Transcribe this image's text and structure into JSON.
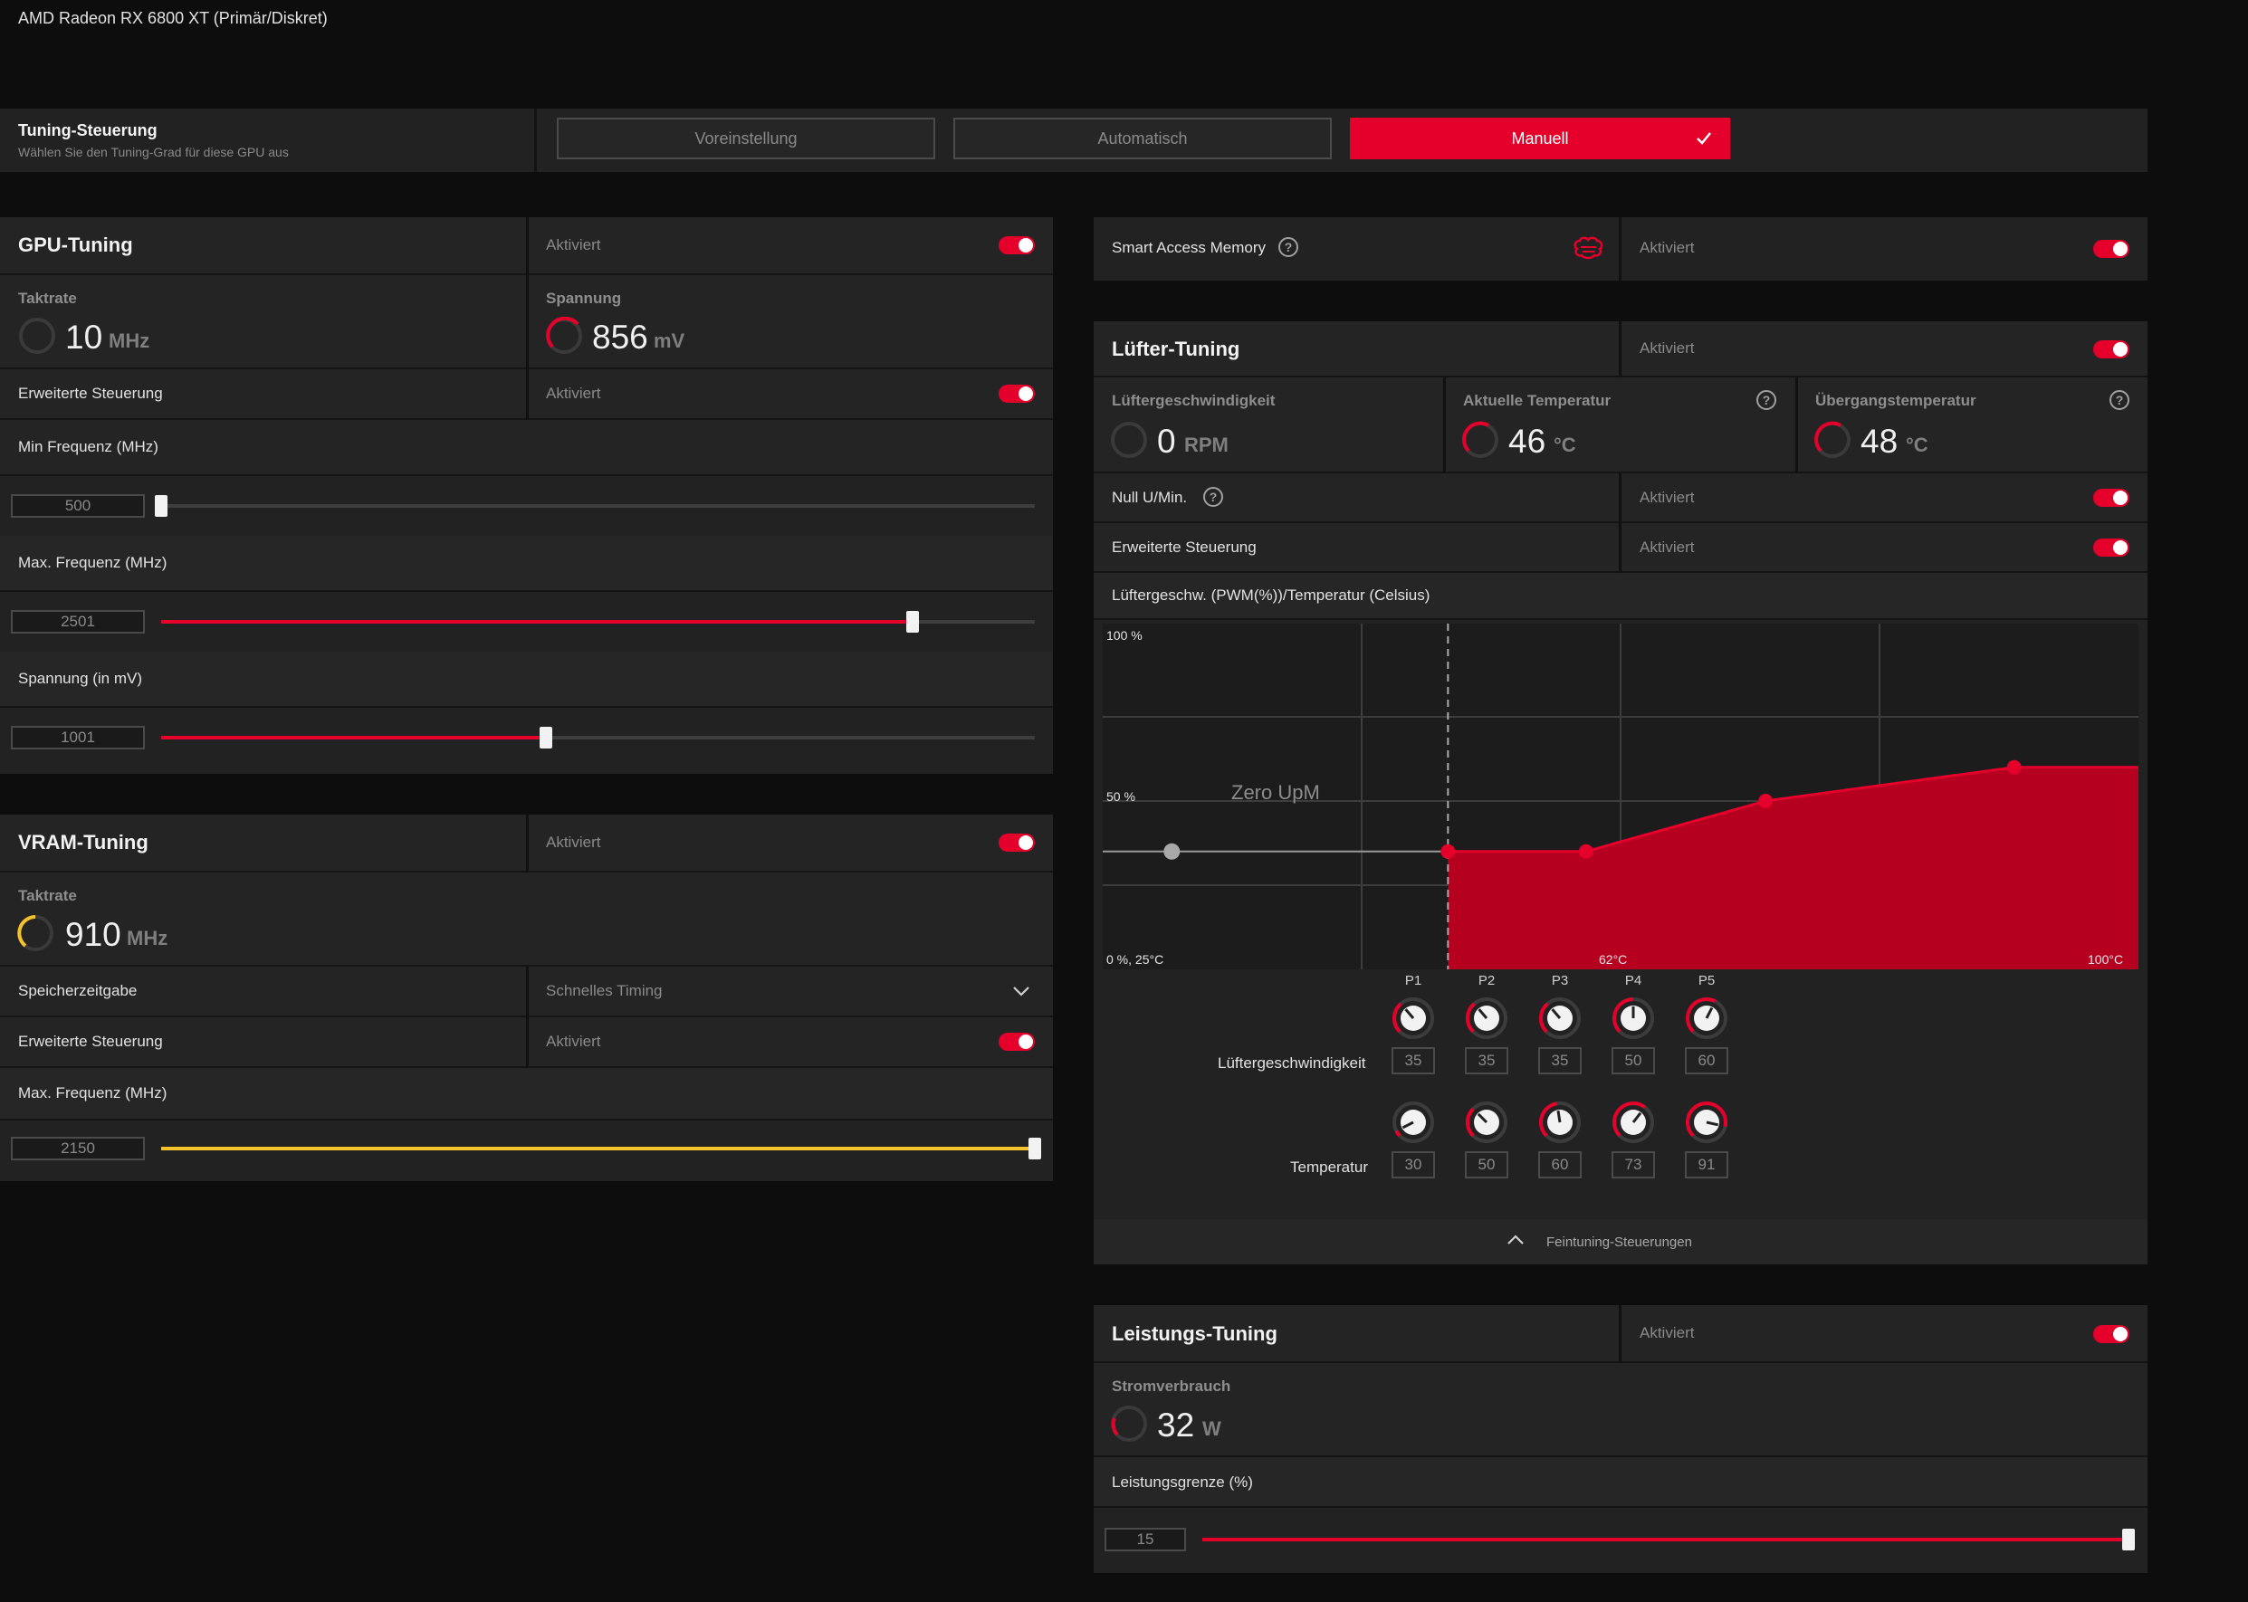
{
  "window_title": "AMD Radeon RX 6800 XT (Primär/Diskret)",
  "tuning_control": {
    "title": "Tuning-Steuerung",
    "subtitle": "Wählen Sie den Tuning-Grad für diese GPU aus",
    "options": [
      "Voreinstellung",
      "Automatisch",
      "Manuell"
    ],
    "selected": "Manuell"
  },
  "gpu_tuning": {
    "title": "GPU-Tuning",
    "status": "Aktiviert",
    "clock_label": "Taktrate",
    "clock_value": "10",
    "clock_unit": "MHz",
    "voltage_label": "Spannung",
    "voltage_value": "856",
    "voltage_unit": "mV",
    "advanced_label": "Erweiterte Steuerung",
    "advanced_status": "Aktiviert",
    "min_freq_label": "Min Frequenz (MHz)",
    "min_freq_value": "500",
    "min_freq_fraction": 0.0,
    "max_freq_label": "Max. Frequenz (MHz)",
    "max_freq_value": "2501",
    "max_freq_fraction": 0.86,
    "voltage_mv_label": "Spannung (in mV)",
    "voltage_mv_value": "1001",
    "voltage_mv_fraction": 0.44
  },
  "vram_tuning": {
    "title": "VRAM-Tuning",
    "status": "Aktiviert",
    "clock_label": "Taktrate",
    "clock_value": "910",
    "clock_unit": "MHz",
    "timing_label": "Speicherzeitgabe",
    "timing_value": "Schnelles Timing",
    "advanced_label": "Erweiterte Steuerung",
    "advanced_status": "Aktiviert",
    "max_freq_label": "Max. Frequenz (MHz)",
    "max_freq_value": "2150",
    "max_freq_fraction": 1.0
  },
  "smart_access_memory": {
    "label": "Smart Access Memory",
    "status": "Aktiviert"
  },
  "fan_tuning": {
    "title": "Lüfter-Tuning",
    "status": "Aktiviert",
    "fan_speed_label": "Lüftergeschwindigkeit",
    "fan_speed_value": "0",
    "fan_speed_unit": "RPM",
    "current_temp_label": "Aktuelle Temperatur",
    "current_temp_value": "46",
    "current_temp_unit": "°C",
    "junction_temp_label": "Übergangstemperatur",
    "junction_temp_value": "48",
    "junction_temp_unit": "°C",
    "zero_rpm_label": "Null U/Min.",
    "zero_rpm_status": "Aktiviert",
    "advanced_label": "Erweiterte Steuerung",
    "advanced_status": "Aktiviert",
    "curve_label": "Lüftergeschw. (PWM(%))/Temperatur (Celsius)",
    "point_labels": [
      "P1",
      "P2",
      "P3",
      "P4",
      "P5"
    ],
    "speed_row_label": "Lüftergeschwindigkeit",
    "temp_row_label": "Temperatur",
    "speed_values": [
      "35",
      "35",
      "35",
      "50",
      "60"
    ],
    "temp_values": [
      "30",
      "50",
      "60",
      "73",
      "91"
    ],
    "fine_tuning_label": "Feintuning-Steuerungen"
  },
  "chart_data": {
    "type": "area",
    "y_top_label": "100 %",
    "y_mid_label": "50 %",
    "origin_label": "0 %, 25°C",
    "x_mid_label": "62°C",
    "x_end_label": "100°C",
    "zero_rpm_text": "Zero UpM",
    "xlim": [
      25,
      100
    ],
    "ylim": [
      0,
      100
    ],
    "grey_handle": {
      "x": 30,
      "y": 35
    },
    "zero_rpm_boundary": {
      "x": 50,
      "y": 35
    },
    "series": [
      {
        "x": 50,
        "y": 35
      },
      {
        "x": 60,
        "y": 35
      },
      {
        "x": 73,
        "y": 50
      },
      {
        "x": 91,
        "y": 60
      },
      {
        "x": 100,
        "y": 60
      }
    ],
    "points": [
      {
        "x": 50,
        "y": 35
      },
      {
        "x": 60,
        "y": 35
      },
      {
        "x": 73,
        "y": 50
      },
      {
        "x": 91,
        "y": 60
      }
    ]
  },
  "power_tuning": {
    "title": "Leistungs-Tuning",
    "status": "Aktiviert",
    "power_label": "Stromverbrauch",
    "power_value": "32",
    "power_unit": "W",
    "limit_label": "Leistungsgrenze (%)",
    "limit_value": "15",
    "limit_fraction": 1.0
  },
  "colors": {
    "accent_red": "#e4002b",
    "accent_yellow": "#f4c22b",
    "panel": "#222223",
    "background": "#0d0d0d"
  }
}
